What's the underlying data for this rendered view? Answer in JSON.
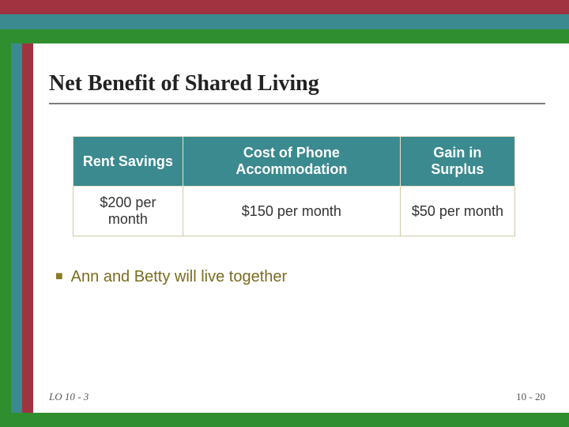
{
  "colors": {
    "band_green": "#2f8f2f",
    "band_teal": "#3b8a8f",
    "band_maroon": "#a0333f",
    "title_rule": "#7c7c7c",
    "table_header_bg": "#3b8a8f",
    "table_header_text": "#ffffff",
    "table_border": "#d0caa8",
    "bullet_color": "#8a7b28",
    "bullet_text_color": "#7a6c1f"
  },
  "title": "Net Benefit of Shared Living",
  "table": {
    "columns": [
      "Rent Savings",
      "Cost of Phone Accommodation",
      "Gain in Surplus"
    ],
    "rows": [
      [
        "$200 per month",
        "$150 per month",
        "$50 per month"
      ]
    ],
    "header_fontsize": 18,
    "cell_fontsize": 18
  },
  "bullets": {
    "items": [
      "Ann and Betty will live together"
    ],
    "glyph": "■"
  },
  "footer": {
    "left": "LO 10 - 3",
    "right": "10 - 20"
  }
}
